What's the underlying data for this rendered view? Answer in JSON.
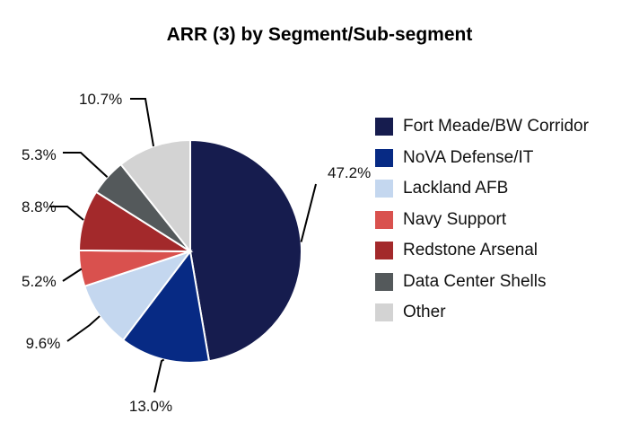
{
  "chart_data": {
    "type": "pie",
    "title": "ARR (3) by Segment/Sub-segment",
    "categories": [
      "Fort Meade/BW Corridor",
      "NoVA Defense/IT",
      "Lackland AFB",
      "Navy Support",
      "Redstone Arsenal",
      "Data Center Shells",
      "Other"
    ],
    "values": [
      47.2,
      13.0,
      9.6,
      5.2,
      8.8,
      5.3,
      10.7
    ],
    "labels": [
      "47.2%",
      "13.0%",
      "9.6%",
      "5.2%",
      "8.8%",
      "5.3%",
      "10.7%"
    ],
    "colors": [
      "#161c4e",
      "#072a84",
      "#c4d7ef",
      "#d9514e",
      "#a3292b",
      "#54595b",
      "#d3d3d3"
    ],
    "legend": "right",
    "start": "top, clockwise"
  }
}
